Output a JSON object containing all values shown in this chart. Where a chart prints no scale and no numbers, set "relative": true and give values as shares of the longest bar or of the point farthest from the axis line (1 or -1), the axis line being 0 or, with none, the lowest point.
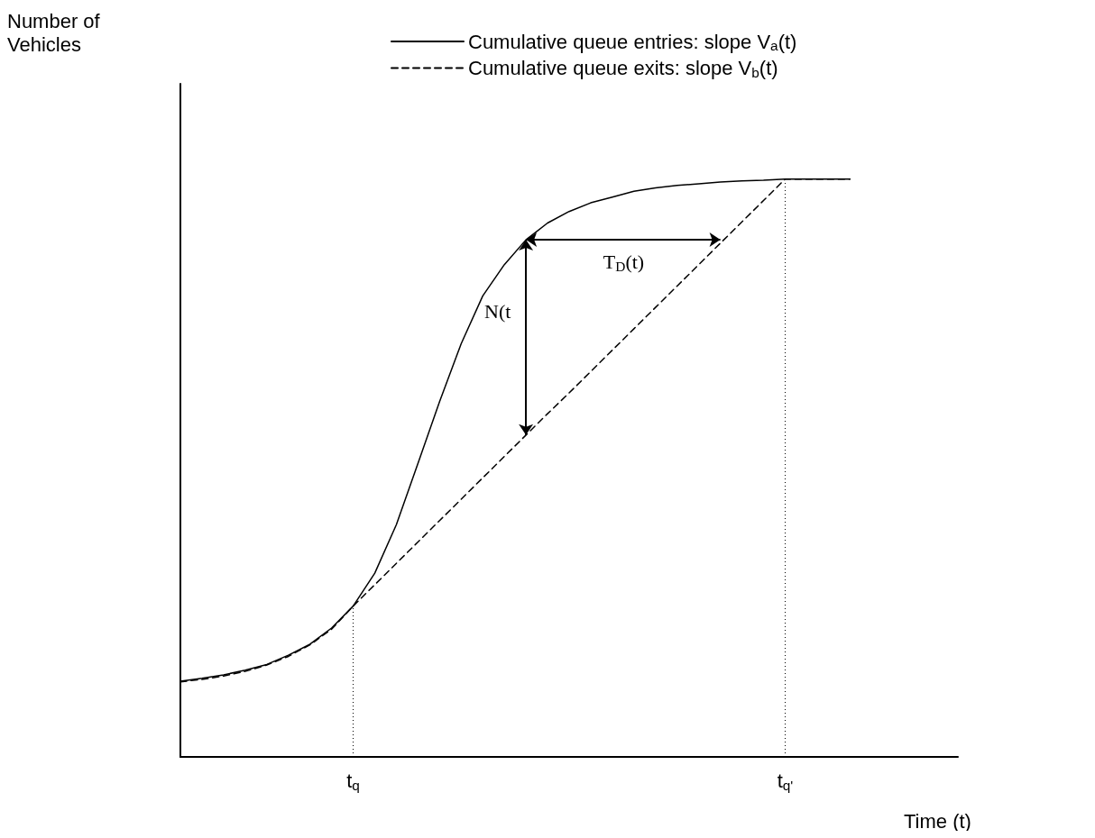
{
  "chart_data": {
    "type": "line",
    "relative": true,
    "xlabel": "Time (t)",
    "categories": [
      null,
      null,
      null,
      null,
      null,
      null,
      null,
      null,
      "t$_{q}$",
      null,
      null,
      null,
      null,
      null,
      null,
      null,
      null,
      null,
      null,
      null,
      null,
      null,
      null,
      null,
      null,
      null,
      null,
      null,
      "t$_{q'}$",
      null,
      null,
      null,
      null,
      null,
      null,
      null,
      null
    ],
    "series": [
      {
        "name": "Cumulative queue entries: slope V$_{a}$(t)",
        "color": "#000000",
        "line_style": "solid",
        "values": [
          0.131,
          0.136,
          0.142,
          0.15,
          0.16,
          0.176,
          0.195,
          0.223,
          0.261,
          0.318,
          0.402,
          0.508,
          0.615,
          0.715,
          0.798,
          0.852,
          0.895,
          0.924,
          0.944,
          0.959,
          0.969,
          0.979,
          0.985,
          0.989,
          0.992,
          0.995,
          0.997,
          0.998,
          1,
          1,
          1,
          1,
          null,
          null,
          null,
          null,
          null
        ]
      },
      {
        "name": "Cumulative queue exits: slope V$_{b}$(t)",
        "color": "#000000",
        "line_style": "dashed",
        "values": [
          0.13,
          0.134,
          0.14,
          0.148,
          0.159,
          0.174,
          0.194,
          0.221,
          0.261,
          0.298,
          0.335,
          0.372,
          0.409,
          0.446,
          0.483,
          0.52,
          0.557,
          0.594,
          0.63,
          0.667,
          0.704,
          0.741,
          0.778,
          0.815,
          0.852,
          0.889,
          0.926,
          0.963,
          1,
          1,
          1,
          1,
          null,
          null,
          null,
          null,
          null
        ]
      }
    ],
    "ref_lines": [
      {
        "axis": "x",
        "value": "t$_{q}$",
        "line_style": "dotted"
      },
      {
        "axis": "x",
        "value": "t$_{q'}$",
        "line_style": "dotted"
      }
    ],
    "annotations": [
      "Number of\nVehicles",
      "N(t",
      "T$_{D}$(t)"
    ],
    "legend": "top",
    "grid": false,
    "marker": "none"
  }
}
